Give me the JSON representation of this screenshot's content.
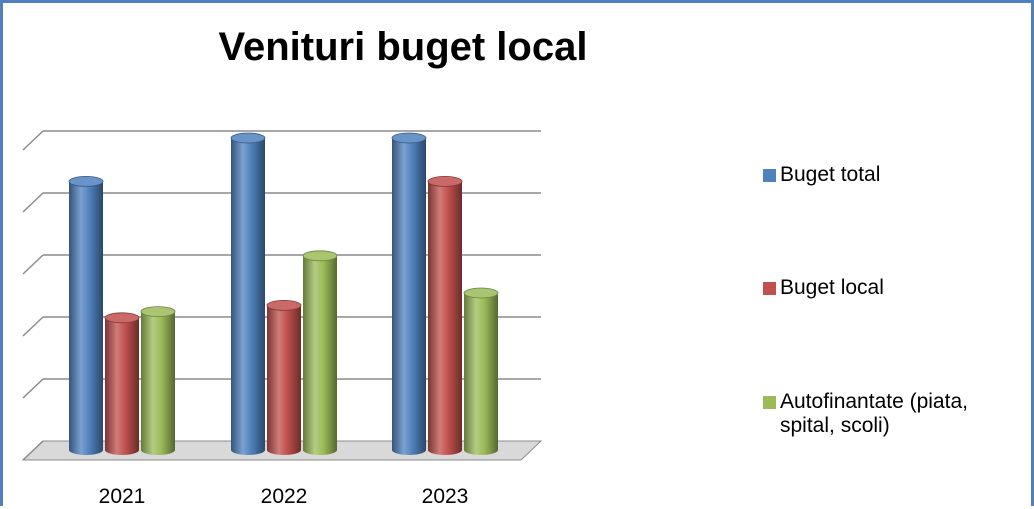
{
  "chart_data": {
    "type": "bar",
    "title": "Venituri buget local",
    "categories": [
      "2021",
      "2022",
      "2023"
    ],
    "ylim": [
      0,
      5
    ],
    "grid": true,
    "legend_position": "right",
    "series": [
      {
        "name": "Buget total",
        "color": "#4f81bd",
        "values": [
          4.3,
          5.0,
          5.0
        ]
      },
      {
        "name": "Buget local",
        "color": "#c0504d",
        "values": [
          2.1,
          2.3,
          4.3
        ]
      },
      {
        "name": "Autofinantate (piata, spital, scoli)",
        "color": "#9bbb59",
        "values": [
          2.2,
          3.1,
          2.5
        ]
      }
    ]
  }
}
